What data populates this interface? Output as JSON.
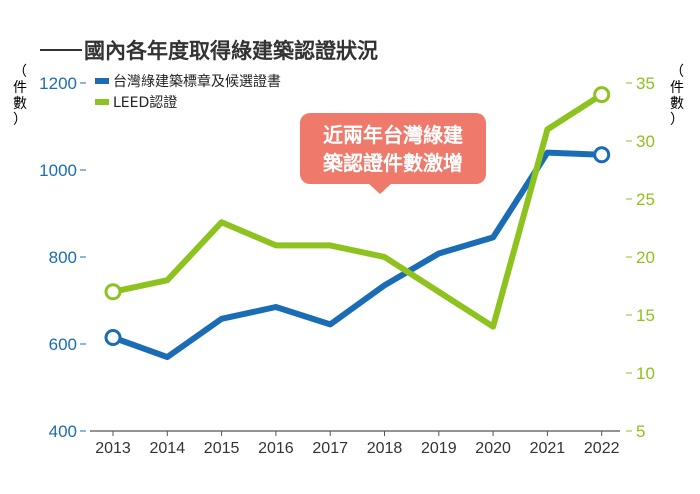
{
  "chart_data": {
    "type": "line",
    "title": "國內各年度取得綠建築認證狀況",
    "x": [
      "2013",
      "2014",
      "2015",
      "2016",
      "2017",
      "2018",
      "2019",
      "2020",
      "2021",
      "2022"
    ],
    "left_axis": {
      "unit_label": [
        "（",
        "件",
        "數",
        "）"
      ],
      "ylim": [
        400,
        1200
      ],
      "ticks": [
        "400",
        "600",
        "800",
        "1000",
        "1200"
      ],
      "color": "#1a6db5"
    },
    "right_axis": {
      "unit_label": [
        "（",
        "件",
        "數",
        "）"
      ],
      "ylim": [
        5,
        35
      ],
      "ticks": [
        "5",
        "10",
        "15",
        "20",
        "25",
        "30",
        "35"
      ],
      "color": "#8dc21f"
    },
    "series": [
      {
        "name": "台灣綠建築標章及候選證書",
        "axis": "left",
        "color": "#1a6db5",
        "values": [
          615,
          570,
          658,
          685,
          645,
          735,
          808,
          845,
          1040,
          1035
        ]
      },
      {
        "name": "LEED認證",
        "axis": "right",
        "color": "#8dc21f",
        "values": [
          17,
          18,
          23,
          21,
          21,
          20,
          17,
          14,
          31,
          34
        ]
      }
    ],
    "annotation": {
      "lines": [
        "近兩年台灣綠建",
        "築認證件數激增"
      ],
      "color": "#ef7a6b"
    },
    "legend_position": "top-left",
    "grid": false
  }
}
